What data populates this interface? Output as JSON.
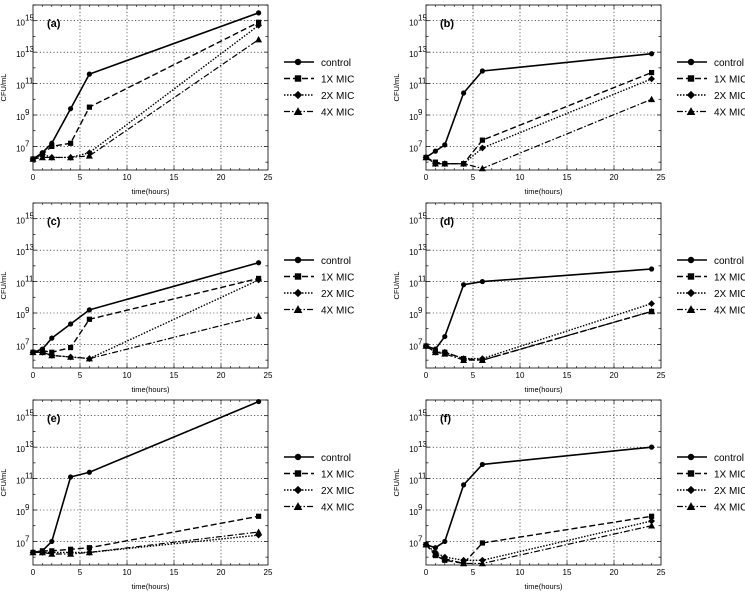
{
  "figure": {
    "xlabel": "time(hours)",
    "ylabel": "CFU/mL",
    "x_ticks": [
      0,
      5,
      10,
      15,
      20,
      25
    ],
    "y_ticks": [
      {
        "value": 7,
        "base": "10",
        "exp": "7"
      },
      {
        "value": 9,
        "base": "10",
        "exp": "9"
      },
      {
        "value": 11,
        "base": "10",
        "exp": "11"
      },
      {
        "value": 13,
        "base": "10",
        "exp": "13"
      },
      {
        "value": 15,
        "base": "10",
        "exp": "15"
      }
    ],
    "series_styles": {
      "control": {
        "dash": "",
        "marker": "circle",
        "width": 1.6
      },
      "1X MIC": {
        "dash": "6 3",
        "marker": "square",
        "width": 1.4
      },
      "2X MIC": {
        "dash": "1.5 1.5",
        "marker": "diamond",
        "width": 1.4
      },
      "4X MIC": {
        "dash": "6 2 1.5 2",
        "marker": "triangle",
        "width": 1.2
      }
    }
  },
  "chart_data": [
    {
      "type": "line",
      "panel": "(a)",
      "xlabel": "time(hours)",
      "ylabel": "CFU/mL",
      "xlim": [
        0,
        25
      ],
      "ylim": [
        5.5,
        16
      ],
      "y_scale": "log10",
      "grid": true,
      "legend": "right",
      "x": [
        0,
        1,
        2,
        4,
        6,
        24
      ],
      "series": [
        {
          "name": "control",
          "values": [
            6.2,
            6.6,
            7.2,
            9.4,
            11.6,
            15.5
          ]
        },
        {
          "name": "1X MIC",
          "values": [
            6.2,
            6.5,
            7.0,
            7.2,
            9.5,
            14.9
          ]
        },
        {
          "name": "2X MIC",
          "values": [
            6.2,
            6.5,
            6.3,
            6.3,
            6.6,
            14.7
          ]
        },
        {
          "name": "4X MIC",
          "values": [
            6.2,
            6.3,
            6.3,
            6.3,
            6.4,
            13.8
          ]
        }
      ]
    },
    {
      "type": "line",
      "panel": "(b)",
      "xlabel": "time(hours)",
      "ylabel": "CFU/mL",
      "xlim": [
        0,
        25
      ],
      "ylim": [
        5.5,
        16
      ],
      "y_scale": "log10",
      "grid": true,
      "legend": "right",
      "x": [
        0,
        1,
        2,
        4,
        6,
        24
      ],
      "series": [
        {
          "name": "control",
          "values": [
            6.3,
            6.7,
            7.1,
            10.4,
            11.8,
            12.9
          ]
        },
        {
          "name": "1X MIC",
          "values": [
            6.3,
            6.0,
            5.9,
            5.9,
            7.4,
            11.7
          ]
        },
        {
          "name": "2X MIC",
          "values": [
            6.3,
            5.9,
            5.9,
            5.9,
            6.9,
            11.3
          ]
        },
        {
          "name": "4X MIC",
          "values": [
            6.3,
            5.9,
            5.9,
            5.9,
            5.6,
            10.0
          ]
        }
      ]
    },
    {
      "type": "line",
      "panel": "(c)",
      "xlabel": "time(hours)",
      "ylabel": "CFU/mL",
      "xlim": [
        0,
        25
      ],
      "ylim": [
        5.5,
        16
      ],
      "y_scale": "log10",
      "grid": true,
      "legend": "right",
      "x": [
        0,
        1,
        2,
        4,
        6,
        24
      ],
      "series": [
        {
          "name": "control",
          "values": [
            6.5,
            6.7,
            7.4,
            8.3,
            9.2,
            12.2
          ]
        },
        {
          "name": "1X MIC",
          "values": [
            6.5,
            6.6,
            6.5,
            6.8,
            8.6,
            11.2
          ]
        },
        {
          "name": "2X MIC",
          "values": [
            6.5,
            6.5,
            6.3,
            6.2,
            6.1,
            11.1
          ]
        },
        {
          "name": "4X MIC",
          "values": [
            6.5,
            6.5,
            6.3,
            6.2,
            6.1,
            8.8
          ]
        }
      ]
    },
    {
      "type": "line",
      "panel": "(d)",
      "xlabel": "time(hours)",
      "ylabel": "CFU/mL",
      "xlim": [
        0,
        25
      ],
      "ylim": [
        5.5,
        16
      ],
      "y_scale": "log10",
      "grid": true,
      "legend": "right",
      "x": [
        0,
        1,
        2,
        4,
        6,
        24
      ],
      "series": [
        {
          "name": "control",
          "values": [
            6.9,
            6.7,
            7.5,
            10.8,
            11.0,
            11.8
          ]
        },
        {
          "name": "1X MIC",
          "values": [
            6.9,
            6.5,
            6.5,
            6.1,
            6.0,
            9.1
          ]
        },
        {
          "name": "2X MIC",
          "values": [
            6.9,
            6.5,
            6.5,
            6.1,
            6.1,
            9.6
          ]
        },
        {
          "name": "4X MIC",
          "values": [
            6.9,
            6.5,
            6.4,
            6.0,
            6.0,
            9.1
          ]
        }
      ]
    },
    {
      "type": "line",
      "panel": "(e)",
      "xlabel": "time(hours)",
      "ylabel": "CFU/mL",
      "xlim": [
        0,
        25
      ],
      "ylim": [
        5.5,
        16
      ],
      "y_scale": "log10",
      "grid": true,
      "legend": "right",
      "x": [
        0,
        1,
        2,
        4,
        6,
        24
      ],
      "series": [
        {
          "name": "control",
          "values": [
            6.3,
            6.4,
            7.0,
            11.1,
            11.4,
            15.9
          ]
        },
        {
          "name": "1X MIC",
          "values": [
            6.3,
            6.4,
            6.4,
            6.5,
            6.6,
            8.6
          ]
        },
        {
          "name": "2X MIC",
          "values": [
            6.3,
            6.3,
            6.3,
            6.3,
            6.3,
            7.4
          ]
        },
        {
          "name": "4X MIC",
          "values": [
            6.3,
            6.3,
            6.2,
            6.2,
            6.3,
            7.6
          ]
        }
      ]
    },
    {
      "type": "line",
      "panel": "(f)",
      "xlabel": "time(hours)",
      "ylabel": "CFU/mL",
      "xlim": [
        0,
        25
      ],
      "ylim": [
        5.5,
        16
      ],
      "y_scale": "log10",
      "grid": true,
      "legend": "right",
      "x": [
        0,
        1,
        2,
        4,
        6,
        24
      ],
      "series": [
        {
          "name": "control",
          "values": [
            6.8,
            6.6,
            7.0,
            10.6,
            11.9,
            13.0
          ]
        },
        {
          "name": "1X MIC",
          "values": [
            6.8,
            6.1,
            5.8,
            5.6,
            6.9,
            8.6
          ]
        },
        {
          "name": "2X MIC",
          "values": [
            6.8,
            6.3,
            6.0,
            5.8,
            5.8,
            8.3
          ]
        },
        {
          "name": "4X MIC",
          "values": [
            6.8,
            6.2,
            5.9,
            5.6,
            5.6,
            8.0
          ]
        }
      ]
    }
  ]
}
